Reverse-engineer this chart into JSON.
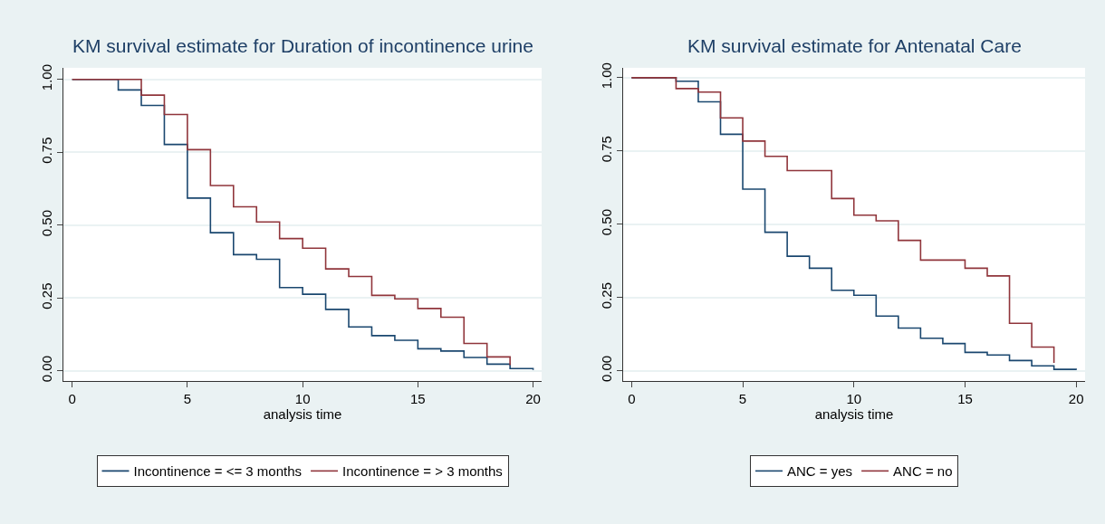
{
  "chart_data": [
    {
      "type": "step",
      "title": "KM survival estimate for Duration of incontinence urine",
      "xlabel": "analysis time",
      "xlim": [
        -0.38,
        20.37
      ],
      "xticks": [
        0,
        5,
        10,
        15,
        20
      ],
      "ylim": [
        -0.034,
        1.04
      ],
      "yticks": [
        {
          "value": 0,
          "label": "0.00"
        },
        {
          "value": 0.25,
          "label": "0.25"
        },
        {
          "value": 0.5,
          "label": "0.50"
        },
        {
          "value": 0.75,
          "label": "0.75"
        },
        {
          "value": 1,
          "label": "1.00"
        }
      ],
      "grid": "y",
      "legend": "bottom",
      "series": [
        {
          "name": "Incontinence = <= 3 months",
          "color": "#1a476f",
          "x": [
            0,
            2,
            3,
            4,
            5,
            6,
            7,
            8,
            9,
            10,
            11,
            12,
            13,
            14,
            15,
            16,
            17,
            18,
            19,
            20
          ],
          "values": [
            1,
            0.964,
            0.911,
            0.777,
            0.593,
            0.474,
            0.399,
            0.383,
            0.286,
            0.263,
            0.211,
            0.151,
            0.121,
            0.105,
            0.076,
            0.068,
            0.046,
            0.023,
            0.008,
            0.003
          ]
        },
        {
          "name": "Incontinence = > 3 months",
          "color": "#90353b",
          "x": [
            0,
            3,
            4,
            5,
            6,
            7,
            8,
            9,
            10,
            11,
            12,
            13,
            14,
            15,
            16,
            17,
            18,
            19
          ],
          "values": [
            1,
            0.946,
            0.88,
            0.759,
            0.636,
            0.563,
            0.511,
            0.454,
            0.421,
            0.35,
            0.324,
            0.259,
            0.247,
            0.214,
            0.184,
            0.094,
            0.048,
            0.02
          ]
        }
      ]
    },
    {
      "type": "step",
      "title": "KM survival estimate for Antenatal Care",
      "xlabel": "analysis time",
      "xlim": [
        -0.38,
        20.4
      ],
      "xticks": [
        0,
        5,
        10,
        15,
        20
      ],
      "ylim": [
        -0.034,
        1.034
      ],
      "yticks": [
        {
          "value": 0,
          "label": "0.00"
        },
        {
          "value": 0.25,
          "label": "0.25"
        },
        {
          "value": 0.5,
          "label": "0.50"
        },
        {
          "value": 0.75,
          "label": "0.75"
        },
        {
          "value": 1,
          "label": "1.00"
        }
      ],
      "grid": "y",
      "legend": "bottom",
      "series": [
        {
          "name": "ANC = yes",
          "color": "#1a476f",
          "x": [
            0,
            2,
            3,
            4,
            5,
            6,
            7,
            8,
            9,
            10,
            11,
            12,
            13,
            14,
            15,
            16,
            17,
            18,
            19,
            20
          ],
          "values": [
            1,
            0.988,
            0.918,
            0.807,
            0.62,
            0.473,
            0.391,
            0.35,
            0.275,
            0.258,
            0.187,
            0.146,
            0.111,
            0.093,
            0.063,
            0.054,
            0.035,
            0.017,
            0.005,
            0.003
          ]
        },
        {
          "name": "ANC = no",
          "color": "#90353b",
          "x": [
            0,
            2,
            3,
            4,
            5,
            6,
            7,
            9,
            10,
            11,
            12,
            13,
            15,
            16,
            17,
            18,
            19
          ],
          "values": [
            1,
            0.963,
            0.951,
            0.863,
            0.784,
            0.732,
            0.683,
            0.588,
            0.531,
            0.512,
            0.445,
            0.378,
            0.35,
            0.324,
            0.162,
            0.081,
            0.027
          ]
        }
      ]
    }
  ]
}
